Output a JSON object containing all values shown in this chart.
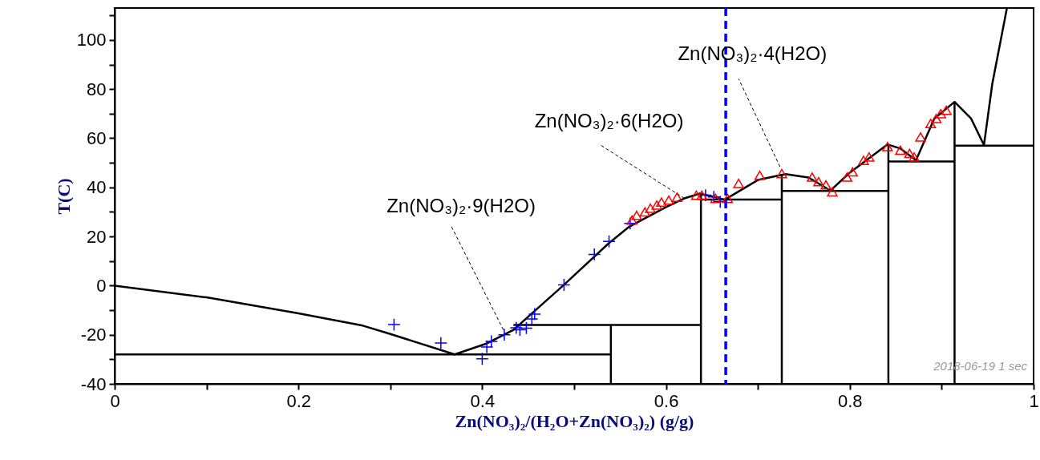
{
  "chart_data": {
    "type": "line",
    "xlabel": "Zn(NO₃)₂/(H₂O+Zn(NO₃)₂) (g/g)",
    "ylabel": "T(C)",
    "xlim": [
      0,
      1
    ],
    "ylim": [
      -40,
      113
    ],
    "xticks": [
      0,
      {
        "value": 0.1,
        "label": null
      },
      0.2,
      {
        "value": 0.3,
        "label": null
      },
      0.4,
      {
        "value": 0.5,
        "label": null
      },
      0.6,
      {
        "value": 0.7,
        "label": null
      },
      0.8,
      {
        "value": 0.9,
        "label": null
      },
      1
    ],
    "yticks": [
      -40,
      {
        "value": -30,
        "label": null
      },
      -20,
      {
        "value": -10,
        "label": null
      },
      0,
      {
        "value": 10,
        "label": null
      },
      20,
      {
        "value": 30,
        "label": null
      },
      40,
      {
        "value": 50,
        "label": null
      },
      60,
      {
        "value": 70,
        "label": null
      },
      80,
      {
        "value": 90,
        "label": null
      },
      100,
      {
        "value": 110,
        "label": null
      }
    ],
    "series": [
      {
        "color": "#000000",
        "x": [
          0,
          0.1,
          0.2,
          0.27,
          0.3,
          0.37,
          0.404,
          0.434,
          0.488,
          0.537,
          0.56,
          0.6,
          0.62,
          0.637,
          0.664,
          0.7,
          0.73,
          0.755,
          0.779,
          0.8,
          0.841,
          0.855,
          0.872,
          0.892,
          0.914,
          0.932,
          0.946,
          0.955,
          0.971
        ],
        "values": [
          0,
          -4.8,
          -11.3,
          -16.3,
          -19.7,
          -28,
          -23.7,
          -18,
          0,
          17,
          24,
          32,
          35.5,
          37.5,
          35,
          43,
          45.4,
          44,
          38.7,
          46,
          57.5,
          55.8,
          51,
          68,
          74.8,
          68,
          57.2,
          82,
          113
        ]
      },
      {
        "color": "#000000",
        "x": [
          0,
          0.54
        ],
        "values": [
          -28,
          -28
        ]
      },
      {
        "color": "#000000",
        "x": [
          0.54,
          0.54
        ],
        "values": [
          -40,
          -16
        ]
      },
      {
        "color": "#000000",
        "x": [
          0.434,
          0.638
        ],
        "values": [
          -16,
          -16
        ]
      },
      {
        "color": "#000000",
        "x": [
          0.638,
          0.638
        ],
        "values": [
          -40,
          37.5
        ]
      },
      {
        "color": "#000000",
        "x": [
          0.638,
          0.726
        ],
        "values": [
          35,
          35
        ]
      },
      {
        "color": "#000000",
        "x": [
          0.726,
          0.726
        ],
        "values": [
          -40,
          45.4
        ]
      },
      {
        "color": "#000000",
        "x": [
          0.726,
          0.842
        ],
        "values": [
          38.5,
          38.5
        ]
      },
      {
        "color": "#000000",
        "x": [
          0.842,
          0.842
        ],
        "values": [
          -40,
          57.5
        ]
      },
      {
        "color": "#000000",
        "x": [
          0.842,
          0.914
        ],
        "values": [
          50.5,
          50.5
        ]
      },
      {
        "color": "#000000",
        "x": [
          0.914,
          0.914
        ],
        "values": [
          -40,
          74.8
        ]
      },
      {
        "color": "#000000",
        "x": [
          0.914,
          1
        ],
        "values": [
          57,
          57
        ]
      },
      {
        "type": "scatter",
        "marker": "cross",
        "color": "#0000ff",
        "x": [
          0.304,
          0.355,
          0.4,
          0.405,
          0.41,
          0.424,
          0.437,
          0.441,
          0.448,
          0.454,
          0.457,
          0.489,
          0.522,
          0.538,
          0.561,
          0.643,
          0.652,
          0.659
        ],
        "values": [
          -15.9,
          -23.4,
          -29.8,
          -25,
          -22.7,
          -20,
          -17.2,
          -18,
          -17.3,
          -13.6,
          -11.6,
          0.3,
          12.7,
          18,
          25.3,
          36.8,
          36.1,
          34.1
        ]
      },
      {
        "type": "scatter",
        "marker": "triangle",
        "color": "#ff0000",
        "x": [
          0.563,
          0.568,
          0.577,
          0.583,
          0.59,
          0.595,
          0.603,
          0.612,
          0.633,
          0.639,
          0.654,
          0.667,
          0.679,
          0.702,
          0.726,
          0.759,
          0.766,
          0.774,
          0.781,
          0.797,
          0.803,
          0.815,
          0.821,
          0.841,
          0.855,
          0.865,
          0.87,
          0.877,
          0.888,
          0.894,
          0.899,
          0.905
        ],
        "values": [
          26.7,
          28.6,
          30,
          31.5,
          32.8,
          34,
          34.8,
          36,
          36.8,
          36.8,
          35.5,
          35.5,
          41.6,
          44.9,
          45.6,
          44.2,
          42.3,
          41,
          38.2,
          44.2,
          46.3,
          51,
          52.4,
          56.6,
          55.1,
          53.8,
          52.4,
          60.5,
          66,
          68,
          70,
          71.4
        ]
      }
    ],
    "ref_lines": [
      {
        "axis": "x",
        "value": 0.665,
        "color": "#0000ff",
        "line_style": "dashed"
      }
    ],
    "annotations": [
      {
        "text": "Zn(NO₃)₂·9(H2O)",
        "x": 0.423,
        "y": -18
      },
      {
        "text": "Zn(NO₃)₂·6(H2O)",
        "x": 0.62,
        "y": 35.5
      },
      {
        "text": "Zn(NO₃)₂·4(H2O)",
        "x": 0.724,
        "y": 48.4
      },
      "2018-06-19  1 sec"
    ]
  }
}
